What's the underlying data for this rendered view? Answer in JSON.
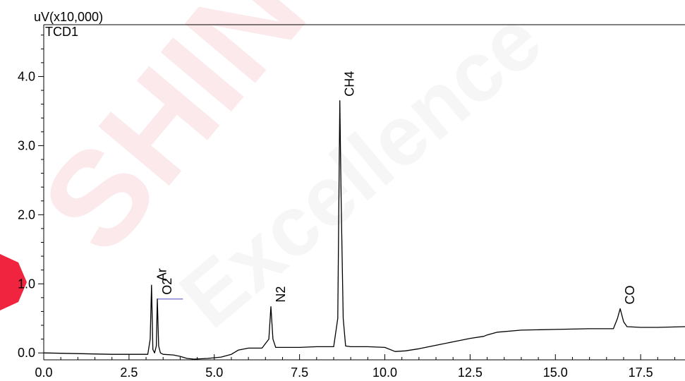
{
  "chart_data": {
    "type": "line",
    "title": "",
    "detector": "TCD1",
    "y_unit_label": "uV(x10,000)",
    "xlabel": "",
    "ylabel": "",
    "xlim": [
      0.0,
      18.8
    ],
    "ylim": [
      -0.1,
      4.75
    ],
    "x_ticks": [
      0.0,
      2.5,
      5.0,
      7.5,
      10.0,
      12.5,
      15.0,
      17.5
    ],
    "x_tick_labels": [
      "0.0",
      "2.5",
      "5.0",
      "7.5",
      "10.0",
      "12.5",
      "15.0",
      "17.5"
    ],
    "y_ticks": [
      0.0,
      1.0,
      2.0,
      3.0,
      4.0
    ],
    "y_tick_labels": [
      "0.0",
      "1.0",
      "2.0",
      "3.0",
      "4.0"
    ],
    "grid": false,
    "series": [
      {
        "x": [
          0.0,
          1.0,
          2.0,
          2.8,
          3.05,
          3.12,
          3.16,
          3.2,
          3.25,
          3.3,
          3.33,
          3.37,
          3.42,
          3.5,
          3.8,
          4.0,
          4.2,
          4.4,
          4.8,
          5.2,
          5.5,
          5.7,
          6.0,
          6.4,
          6.6,
          6.66,
          6.72,
          6.8,
          7.0,
          7.5,
          8.0,
          8.5,
          8.62,
          8.68,
          8.72,
          8.78,
          8.85,
          9.0,
          9.5,
          10.0,
          10.3,
          10.6,
          11.0,
          11.5,
          12.0,
          12.5,
          12.9,
          13.0,
          13.3,
          14.0,
          15.0,
          16.0,
          16.7,
          16.82,
          16.9,
          17.0,
          17.1,
          17.5,
          18.0,
          18.8
        ],
        "y": [
          0.0,
          -0.01,
          -0.02,
          -0.02,
          -0.02,
          0.2,
          0.98,
          0.05,
          0.0,
          0.1,
          0.78,
          0.1,
          0.0,
          -0.02,
          -0.03,
          -0.05,
          -0.08,
          -0.09,
          -0.08,
          -0.06,
          -0.02,
          0.04,
          0.07,
          0.07,
          0.2,
          0.67,
          0.2,
          0.08,
          0.08,
          0.08,
          0.09,
          0.09,
          0.5,
          3.65,
          2.2,
          0.5,
          0.1,
          0.09,
          0.09,
          0.08,
          0.02,
          0.03,
          0.06,
          0.11,
          0.16,
          0.21,
          0.24,
          0.26,
          0.3,
          0.33,
          0.34,
          0.35,
          0.35,
          0.5,
          0.64,
          0.45,
          0.38,
          0.37,
          0.37,
          0.38
        ]
      }
    ],
    "peaks": [
      {
        "name": "Ar",
        "rt": 3.17
      },
      {
        "name": "O2",
        "rt": 3.33
      },
      {
        "name": "N2",
        "rt": 6.66
      },
      {
        "name": "CH4",
        "rt": 8.68
      },
      {
        "name": "CO",
        "rt": 16.9
      }
    ],
    "baseline_marker": {
      "x_from": 3.33,
      "x_to": 4.08,
      "y": 0.78,
      "color": "#5a5acd"
    },
    "line_color": "#000000"
  },
  "watermark": {
    "text_1": "SHIN",
    "text_2": "Excellence",
    "color_1": "#fbe9ec",
    "color_2": "#f6f6f6",
    "logo_color": "#f1243f"
  }
}
